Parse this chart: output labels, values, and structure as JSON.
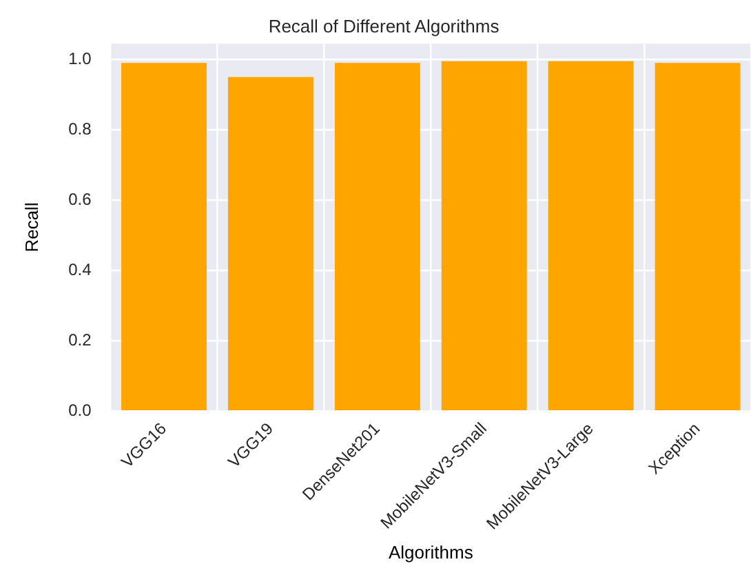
{
  "chart_data": {
    "type": "bar",
    "title": "Recall of Different Algorithms",
    "xlabel": "Algorithms",
    "ylabel": "Recall",
    "categories": [
      "VGG16",
      "VGG19",
      "DenseNet201",
      "MobileNetV3-Small",
      "MobileNetV3-Large",
      "Xception"
    ],
    "values": [
      0.99,
      0.95,
      0.99,
      0.995,
      0.995,
      0.99
    ],
    "color": "#ffa500",
    "ylim": [
      0,
      1.045
    ],
    "yticks": [
      {
        "value": 0,
        "label": "0.0"
      },
      {
        "value": 0.2,
        "label": "0.2"
      },
      {
        "value": 0.4,
        "label": "0.4"
      },
      {
        "value": 0.6,
        "label": "0.6"
      },
      {
        "value": 0.8,
        "label": "0.8"
      },
      {
        "value": 1,
        "label": "1.0"
      }
    ],
    "grid": true
  }
}
